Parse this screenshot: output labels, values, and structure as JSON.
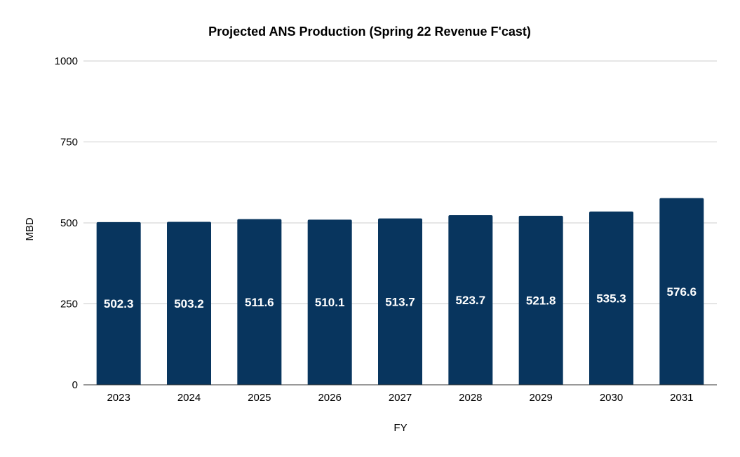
{
  "chart_data": {
    "type": "bar",
    "title": "Projected ANS Production (Spring 22 Revenue F'cast)",
    "xlabel": "FY",
    "ylabel": "MBD",
    "categories": [
      "2023",
      "2024",
      "2025",
      "2026",
      "2027",
      "2028",
      "2029",
      "2030",
      "2031"
    ],
    "values": [
      502.3,
      503.2,
      511.6,
      510.1,
      513.7,
      523.7,
      521.8,
      535.3,
      576.6
    ],
    "value_labels": [
      "502.3",
      "503.2",
      "511.6",
      "510.1",
      "513.7",
      "523.7",
      "521.8",
      "535.3",
      "576.6"
    ],
    "ylim": [
      0,
      1000
    ],
    "yticks": [
      "0",
      "250",
      "500",
      "750",
      "1000"
    ],
    "ytick_values": [
      0,
      250,
      500,
      750,
      1000
    ],
    "grid": true,
    "legend": "none",
    "bar_color": "#08355e",
    "label_color": "#ffffff"
  }
}
